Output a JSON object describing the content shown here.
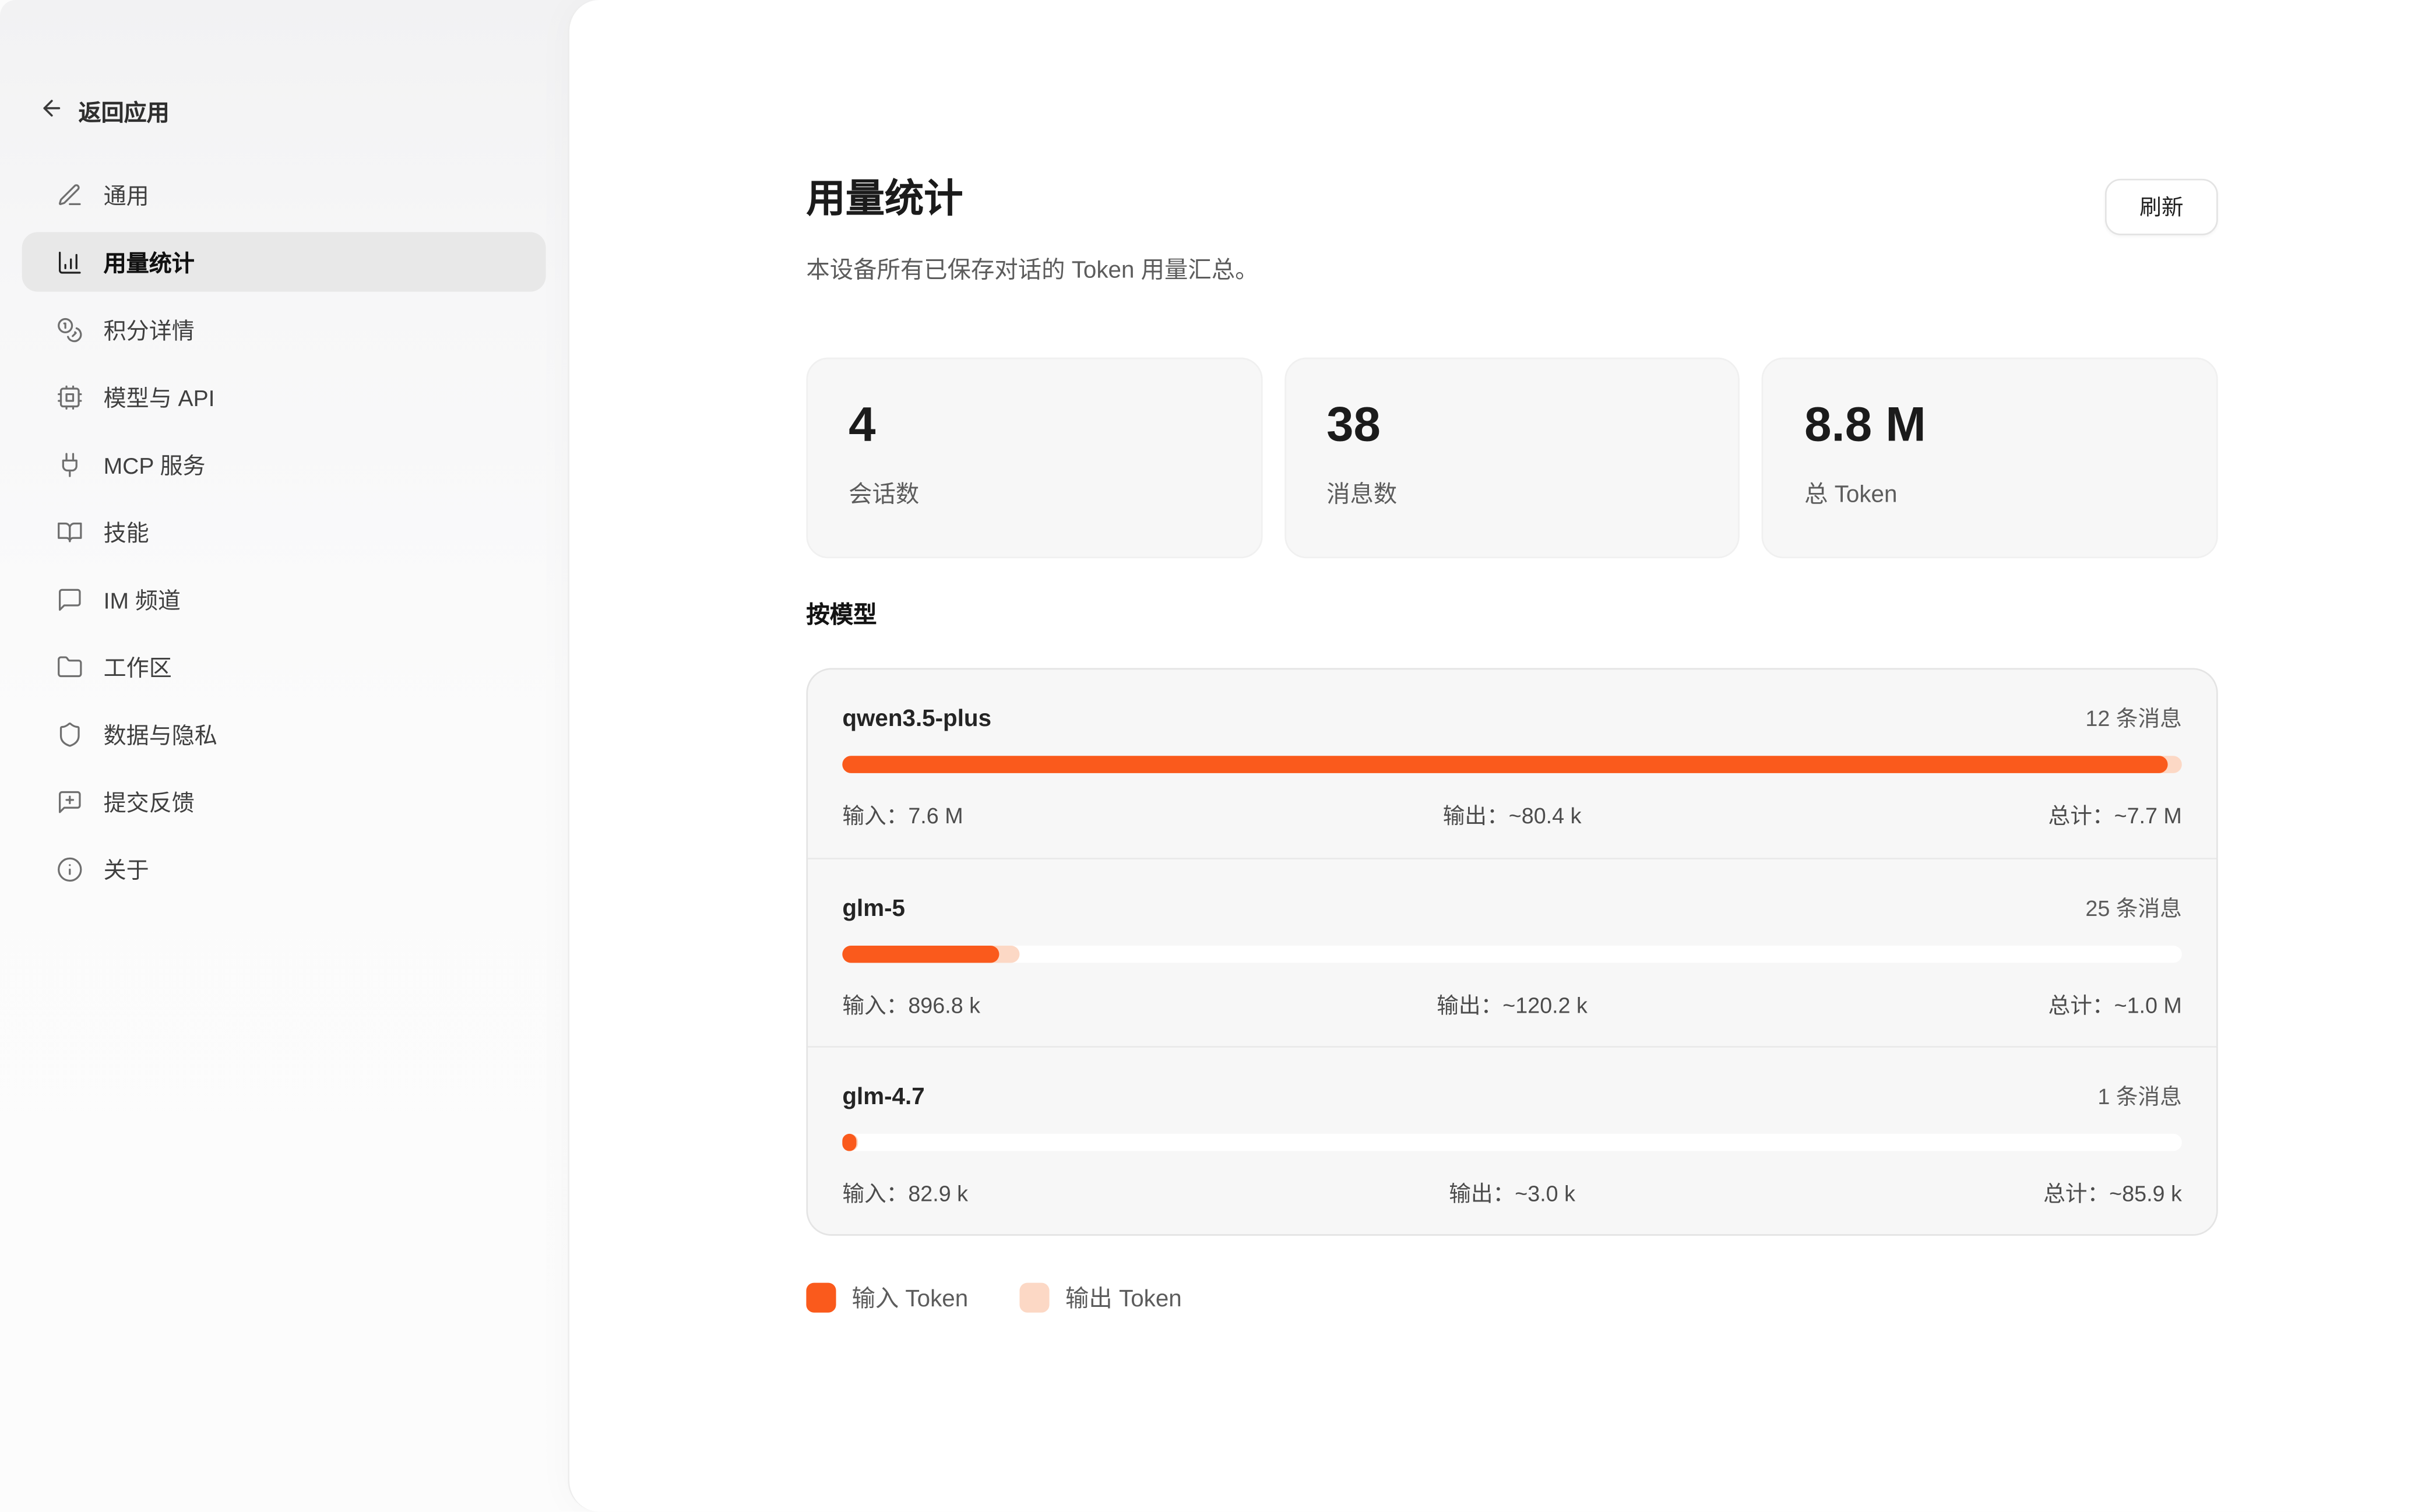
{
  "sidebar": {
    "back_label": "返回应用",
    "items": [
      {
        "label": "通用",
        "icon": "pen-icon"
      },
      {
        "label": "用量统计",
        "icon": "bar-chart-icon",
        "active": true
      },
      {
        "label": "积分详情",
        "icon": "coins-icon"
      },
      {
        "label": "模型与 API",
        "icon": "cpu-icon"
      },
      {
        "label": "MCP 服务",
        "icon": "plug-icon"
      },
      {
        "label": "技能",
        "icon": "book-open-icon"
      },
      {
        "label": "IM 频道",
        "icon": "message-square-icon"
      },
      {
        "label": "工作区",
        "icon": "folder-icon"
      },
      {
        "label": "数据与隐私",
        "icon": "shield-icon"
      },
      {
        "label": "提交反馈",
        "icon": "message-square-plus-icon"
      },
      {
        "label": "关于",
        "icon": "info-icon"
      }
    ]
  },
  "header": {
    "title": "用量统计",
    "subtitle": "本设备所有已保存对话的 Token 用量汇总。",
    "refresh_label": "刷新"
  },
  "stats": [
    {
      "value": "4",
      "label": "会话数"
    },
    {
      "value": "38",
      "label": "消息数"
    },
    {
      "value": "8.8 M",
      "label": "总 Token"
    }
  ],
  "by_model": {
    "heading": "按模型",
    "models": [
      {
        "name": "qwen3.5-plus",
        "messages": "12 条消息",
        "input_label": "输入：7.6 M",
        "output_label": "输出：~80.4 k",
        "total_label": "总计：~7.7 M",
        "input_tokens": 7600000,
        "output_tokens": 80400
      },
      {
        "name": "glm-5",
        "messages": "25 条消息",
        "input_label": "输入：896.8 k",
        "output_label": "输出：~120.2 k",
        "total_label": "总计：~1.0 M",
        "input_tokens": 896800,
        "output_tokens": 120200
      },
      {
        "name": "glm-4.7",
        "messages": "1 条消息",
        "input_label": "输入：82.9 k",
        "output_label": "输出：~3.0 k",
        "total_label": "总计：~85.9 k",
        "input_tokens": 82900,
        "output_tokens": 3000
      }
    ]
  },
  "legend": [
    {
      "label": "输入 Token",
      "color": "#fa5a1c"
    },
    {
      "label": "输出 Token",
      "color": "#fcd8c5"
    }
  ],
  "colors": {
    "input": "#fa5a1c",
    "output": "#fcd8c5"
  }
}
